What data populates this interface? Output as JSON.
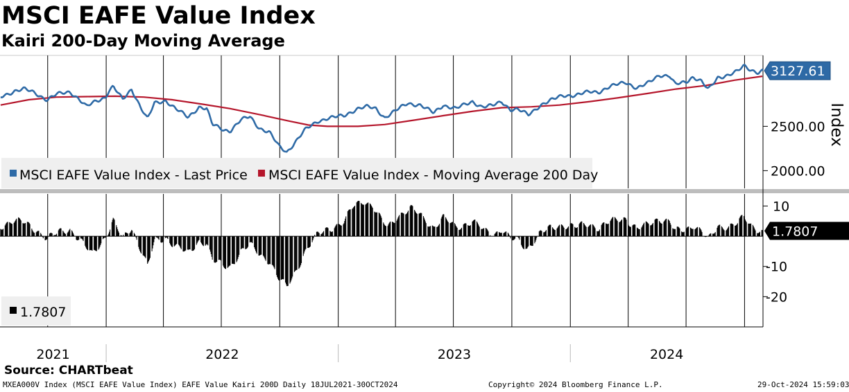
{
  "header": {
    "title": "MSCI EAFE Value Index",
    "subtitle": "Kairi 200-Day Moving Average"
  },
  "footer": {
    "source": "Source: CHARTbeat",
    "ticker_info": "MXEA000V Index (MSCI EAFE Value Index) EAFE Value Kairi 200D  Daily 18JUL2021-30OCT2024",
    "copyright": "Copyright© 2024 Bloomberg Finance L.P.",
    "timestamp": "29-Oct-2024 15:59:03"
  },
  "colors": {
    "price": "#2e6aa6",
    "moving_average": "#b5162b",
    "kairi": "#000000",
    "price_label_bg": "#2e6aa6"
  },
  "chart_data": [
    {
      "type": "line",
      "panel": "upper",
      "ylabel": "Index",
      "x_range": [
        "2021-07-18",
        "2024-10-30"
      ],
      "ylim": [
        1800,
        3300
      ],
      "yticks": [
        "2000.00",
        "2500.00"
      ],
      "xticks": [
        "2021",
        "2022",
        "2023",
        "2024"
      ],
      "last_value_label": "3127.61",
      "series": [
        {
          "name": "MSCI EAFE Value Index - Last Price",
          "color": "#2e6aa6",
          "points": [
            [
              "2021-07-19",
              2830
            ],
            [
              "2021-08-10",
              2900
            ],
            [
              "2021-08-25",
              2920
            ],
            [
              "2021-09-10",
              2880
            ],
            [
              "2021-09-30",
              2800
            ],
            [
              "2021-10-15",
              2860
            ],
            [
              "2021-11-05",
              2890
            ],
            [
              "2021-11-19",
              2810
            ],
            [
              "2021-12-01",
              2720
            ],
            [
              "2021-12-15",
              2780
            ],
            [
              "2021-12-31",
              2830
            ],
            [
              "2022-01-05",
              2900
            ],
            [
              "2022-01-12",
              2950
            ],
            [
              "2022-01-27",
              2800
            ],
            [
              "2022-02-10",
              2920
            ],
            [
              "2022-02-24",
              2720
            ],
            [
              "2022-03-07",
              2580
            ],
            [
              "2022-03-18",
              2760
            ],
            [
              "2022-04-05",
              2790
            ],
            [
              "2022-04-20",
              2700
            ],
            [
              "2022-05-10",
              2600
            ],
            [
              "2022-05-27",
              2720
            ],
            [
              "2022-06-08",
              2700
            ],
            [
              "2022-06-17",
              2520
            ],
            [
              "2022-07-05",
              2460
            ],
            [
              "2022-07-15",
              2450
            ],
            [
              "2022-08-01",
              2570
            ],
            [
              "2022-08-15",
              2610
            ],
            [
              "2022-08-30",
              2480
            ],
            [
              "2022-09-15",
              2430
            ],
            [
              "2022-09-29",
              2280
            ],
            [
              "2022-10-12",
              2210
            ],
            [
              "2022-10-25",
              2320
            ],
            [
              "2022-11-10",
              2460
            ],
            [
              "2022-11-30",
              2560
            ],
            [
              "2022-12-15",
              2590
            ],
            [
              "2023-01-10",
              2620
            ],
            [
              "2023-01-31",
              2700
            ],
            [
              "2023-02-15",
              2720
            ],
            [
              "2023-03-01",
              2700
            ],
            [
              "2023-03-15",
              2600
            ],
            [
              "2023-03-31",
              2670
            ],
            [
              "2023-04-20",
              2760
            ],
            [
              "2023-05-10",
              2740
            ],
            [
              "2023-05-31",
              2650
            ],
            [
              "2023-06-15",
              2740
            ],
            [
              "2023-07-05",
              2700
            ],
            [
              "2023-07-31",
              2780
            ],
            [
              "2023-08-15",
              2720
            ],
            [
              "2023-08-31",
              2730
            ],
            [
              "2023-09-15",
              2780
            ],
            [
              "2023-09-29",
              2690
            ],
            [
              "2023-10-10",
              2690
            ],
            [
              "2023-10-27",
              2630
            ],
            [
              "2023-11-15",
              2740
            ],
            [
              "2023-12-01",
              2790
            ],
            [
              "2023-12-20",
              2850
            ],
            [
              "2024-01-10",
              2850
            ],
            [
              "2024-01-31",
              2890
            ],
            [
              "2024-02-15",
              2890
            ],
            [
              "2024-03-01",
              2940
            ],
            [
              "2024-03-28",
              3000
            ],
            [
              "2024-04-15",
              2930
            ],
            [
              "2024-05-01",
              2980
            ],
            [
              "2024-05-20",
              3080
            ],
            [
              "2024-06-05",
              3070
            ],
            [
              "2024-06-14",
              2970
            ],
            [
              "2024-07-01",
              3000
            ],
            [
              "2024-07-12",
              3060
            ],
            [
              "2024-07-25",
              3010
            ],
            [
              "2024-08-05",
              2910
            ],
            [
              "2024-08-20",
              3050
            ],
            [
              "2024-09-05",
              3080
            ],
            [
              "2024-09-20",
              3120
            ],
            [
              "2024-09-30",
              3180
            ],
            [
              "2024-10-10",
              3140
            ],
            [
              "2024-10-22",
              3110
            ],
            [
              "2024-10-29",
              3127.61
            ]
          ]
        },
        {
          "name": "MSCI EAFE Value Index - Moving Average 200 Day",
          "color": "#b5162b",
          "points": [
            [
              "2021-07-19",
              2740
            ],
            [
              "2021-09-01",
              2800
            ],
            [
              "2021-10-15",
              2830
            ],
            [
              "2021-12-01",
              2835
            ],
            [
              "2022-01-15",
              2840
            ],
            [
              "2022-03-01",
              2830
            ],
            [
              "2022-04-15",
              2800
            ],
            [
              "2022-06-01",
              2750
            ],
            [
              "2022-07-15",
              2700
            ],
            [
              "2022-09-01",
              2630
            ],
            [
              "2022-10-15",
              2560
            ],
            [
              "2022-11-15",
              2515
            ],
            [
              "2022-12-15",
              2500
            ],
            [
              "2023-02-01",
              2500
            ],
            [
              "2023-03-15",
              2520
            ],
            [
              "2023-05-01",
              2570
            ],
            [
              "2023-06-15",
              2620
            ],
            [
              "2023-08-01",
              2670
            ],
            [
              "2023-09-15",
              2710
            ],
            [
              "2023-11-01",
              2720
            ],
            [
              "2023-12-15",
              2740
            ],
            [
              "2024-02-01",
              2780
            ],
            [
              "2024-03-15",
              2820
            ],
            [
              "2024-05-01",
              2870
            ],
            [
              "2024-06-15",
              2920
            ],
            [
              "2024-08-01",
              2960
            ],
            [
              "2024-09-15",
              3020
            ],
            [
              "2024-10-29",
              3065
            ]
          ]
        }
      ]
    },
    {
      "type": "bar",
      "panel": "lower",
      "ylim": [
        -30,
        14
      ],
      "yticks": [
        "10",
        "-10",
        "-20"
      ],
      "last_value_label": "1.7807",
      "series": [
        {
          "name": "1.7807",
          "color": "#000000",
          "points": [
            [
              "2021-07-19",
              3.5
            ],
            [
              "2021-08-05",
              5
            ],
            [
              "2021-08-25",
              4.5
            ],
            [
              "2021-09-15",
              2
            ],
            [
              "2021-09-30",
              -1
            ],
            [
              "2021-10-20",
              1.5
            ],
            [
              "2021-11-05",
              2.5
            ],
            [
              "2021-11-19",
              -1
            ],
            [
              "2021-12-01",
              -4
            ],
            [
              "2021-12-10",
              -6
            ],
            [
              "2021-12-31",
              0
            ],
            [
              "2022-01-12",
              5
            ],
            [
              "2022-01-27",
              -1
            ],
            [
              "2022-02-10",
              3
            ],
            [
              "2022-02-24",
              -4
            ],
            [
              "2022-03-07",
              -10
            ],
            [
              "2022-03-18",
              -2
            ],
            [
              "2022-04-05",
              -0.5
            ],
            [
              "2022-04-20",
              -3
            ],
            [
              "2022-05-10",
              -6
            ],
            [
              "2022-05-27",
              -1.5
            ],
            [
              "2022-06-08",
              -2
            ],
            [
              "2022-06-17",
              -8
            ],
            [
              "2022-07-05",
              -10
            ],
            [
              "2022-07-15",
              -10
            ],
            [
              "2022-08-01",
              -5
            ],
            [
              "2022-08-15",
              -3
            ],
            [
              "2022-08-30",
              -6
            ],
            [
              "2022-09-15",
              -8
            ],
            [
              "2022-09-29",
              -14
            ],
            [
              "2022-10-12",
              -17
            ],
            [
              "2022-10-25",
              -12
            ],
            [
              "2022-11-10",
              -5
            ],
            [
              "2022-11-30",
              0.5
            ],
            [
              "2022-12-15",
              2.5
            ],
            [
              "2023-01-10",
              4.5
            ],
            [
              "2023-01-25",
              10
            ],
            [
              "2023-02-10",
              12
            ],
            [
              "2023-02-24",
              10
            ],
            [
              "2023-03-10",
              5
            ],
            [
              "2023-03-20",
              3
            ],
            [
              "2023-04-05",
              7
            ],
            [
              "2023-04-25",
              9
            ],
            [
              "2023-05-10",
              7
            ],
            [
              "2023-05-31",
              3
            ],
            [
              "2023-06-15",
              6
            ],
            [
              "2023-07-05",
              3
            ],
            [
              "2023-07-31",
              5
            ],
            [
              "2023-08-20",
              1.5
            ],
            [
              "2023-09-05",
              1
            ],
            [
              "2023-09-15",
              2.5
            ],
            [
              "2023-09-29",
              -1
            ],
            [
              "2023-10-10",
              -1.5
            ],
            [
              "2023-10-25",
              -4
            ],
            [
              "2023-11-15",
              1
            ],
            [
              "2023-12-01",
              2.5
            ],
            [
              "2023-12-20",
              4
            ],
            [
              "2024-01-10",
              3
            ],
            [
              "2024-01-31",
              4
            ],
            [
              "2024-02-15",
              3
            ],
            [
              "2024-03-01",
              4.5
            ],
            [
              "2024-03-28",
              6
            ],
            [
              "2024-04-15",
              2.5
            ],
            [
              "2024-05-01",
              3.5
            ],
            [
              "2024-05-20",
              6
            ],
            [
              "2024-06-05",
              5
            ],
            [
              "2024-06-14",
              1.5
            ],
            [
              "2024-07-01",
              2
            ],
            [
              "2024-07-12",
              4
            ],
            [
              "2024-07-25",
              2
            ],
            [
              "2024-08-05",
              -1.5
            ],
            [
              "2024-08-20",
              3
            ],
            [
              "2024-09-05",
              3.5
            ],
            [
              "2024-09-20",
              4.5
            ],
            [
              "2024-09-30",
              6
            ],
            [
              "2024-10-10",
              3.5
            ],
            [
              "2024-10-22",
              2.5
            ],
            [
              "2024-10-29",
              1.7807
            ]
          ]
        }
      ]
    }
  ]
}
